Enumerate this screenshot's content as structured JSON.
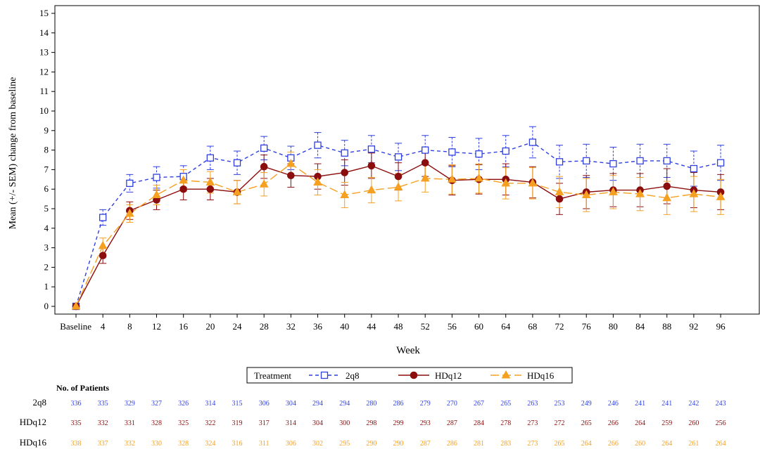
{
  "chart_data": {
    "type": "line",
    "xlabel": "Week",
    "ylabel": "Mean (+/- SEM) change from baseline",
    "ylim": [
      0,
      15
    ],
    "yticks": [
      "0",
      "1",
      "2",
      "3",
      "4",
      "5",
      "6",
      "7",
      "8",
      "9",
      "10",
      "11",
      "12",
      "13",
      "14",
      "15"
    ],
    "categories": [
      "Baseline",
      "4",
      "8",
      "12",
      "16",
      "20",
      "24",
      "28",
      "32",
      "36",
      "40",
      "44",
      "48",
      "52",
      "56",
      "60",
      "64",
      "68",
      "72",
      "76",
      "80",
      "84",
      "88",
      "92",
      "96"
    ],
    "legend": {
      "title": "Treatment",
      "placement": "bottom-center"
    },
    "grid": false,
    "series": [
      {
        "name": "2q8",
        "color": "#2f3fe0",
        "marker": "open-square",
        "line": "dashed",
        "values": [
          0,
          4.55,
          6.3,
          6.6,
          6.65,
          7.6,
          7.35,
          8.1,
          7.6,
          8.25,
          7.85,
          8.05,
          7.65,
          8.0,
          7.9,
          7.8,
          7.95,
          8.4,
          7.4,
          7.45,
          7.3,
          7.45,
          7.45,
          7.05,
          7.35
        ],
        "sem": [
          0,
          0.4,
          0.45,
          0.55,
          0.55,
          0.6,
          0.6,
          0.6,
          0.6,
          0.65,
          0.65,
          0.7,
          0.7,
          0.75,
          0.75,
          0.8,
          0.8,
          0.8,
          0.85,
          0.85,
          0.85,
          0.85,
          0.85,
          0.9,
          0.9
        ]
      },
      {
        "name": "HDq12",
        "color": "#8b0d0d",
        "marker": "filled-circle",
        "line": "solid",
        "values": [
          0,
          2.6,
          4.9,
          5.45,
          6.0,
          6.0,
          5.85,
          7.15,
          6.7,
          6.65,
          6.85,
          7.2,
          6.65,
          7.35,
          6.45,
          6.5,
          6.5,
          6.35,
          5.5,
          5.85,
          5.95,
          5.95,
          6.15,
          5.95,
          5.85
        ],
        "sem": [
          0,
          0.4,
          0.45,
          0.5,
          0.55,
          0.55,
          0.6,
          0.6,
          0.6,
          0.65,
          0.65,
          0.65,
          0.7,
          0.7,
          0.75,
          0.75,
          0.8,
          0.8,
          0.8,
          0.85,
          0.85,
          0.85,
          0.9,
          0.9,
          0.9
        ]
      },
      {
        "name": "HDq16",
        "color": "#f5a020",
        "marker": "filled-triangle",
        "line": "long-dash",
        "values": [
          0,
          3.1,
          4.75,
          5.7,
          6.45,
          6.35,
          5.85,
          6.25,
          7.3,
          6.35,
          5.7,
          5.95,
          6.1,
          6.55,
          6.5,
          6.55,
          6.3,
          6.3,
          5.85,
          5.7,
          5.85,
          5.75,
          5.55,
          5.75,
          5.6
        ],
        "sem": [
          0,
          0.4,
          0.45,
          0.5,
          0.55,
          0.55,
          0.6,
          0.6,
          0.6,
          0.65,
          0.65,
          0.65,
          0.7,
          0.7,
          0.75,
          0.75,
          0.8,
          0.8,
          0.8,
          0.85,
          0.85,
          0.85,
          0.85,
          0.9,
          0.9
        ]
      }
    ]
  },
  "patients": {
    "title": "No. of Patients",
    "rows": [
      {
        "label": "2q8",
        "color": "#2f3fe0",
        "values": [
          "336",
          "335",
          "329",
          "327",
          "326",
          "314",
          "315",
          "306",
          "304",
          "294",
          "294",
          "280",
          "286",
          "279",
          "270",
          "267",
          "265",
          "263",
          "253",
          "249",
          "246",
          "241",
          "241",
          "242",
          "243"
        ]
      },
      {
        "label": "HDq12",
        "color": "#8b0d0d",
        "values": [
          "335",
          "332",
          "331",
          "328",
          "325",
          "322",
          "319",
          "317",
          "314",
          "304",
          "300",
          "298",
          "299",
          "293",
          "287",
          "284",
          "278",
          "273",
          "272",
          "265",
          "266",
          "264",
          "259",
          "260",
          "256"
        ]
      },
      {
        "label": "HDq16",
        "color": "#f5a020",
        "values": [
          "338",
          "337",
          "332",
          "330",
          "328",
          "324",
          "316",
          "311",
          "306",
          "302",
          "295",
          "290",
          "290",
          "287",
          "286",
          "281",
          "283",
          "273",
          "265",
          "264",
          "266",
          "260",
          "264",
          "261",
          "264"
        ]
      }
    ]
  }
}
